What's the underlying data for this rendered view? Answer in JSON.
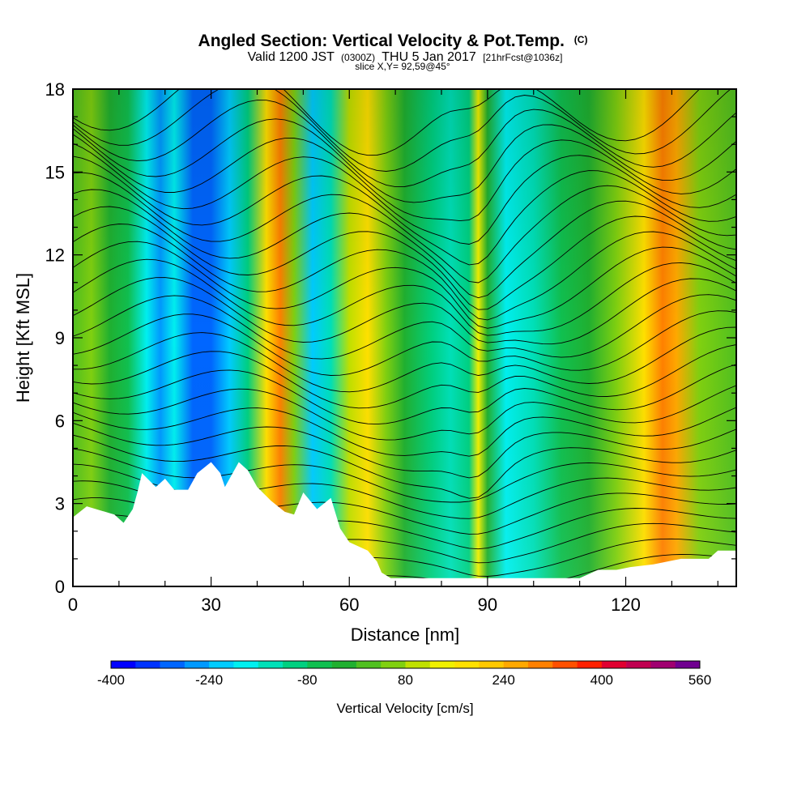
{
  "chart_data": {
    "type": "heatmap",
    "title": "Angled Section: Vertical Velocity & Pot.Temp.",
    "title_suffix": "(C)",
    "subtitle": {
      "valid": "Valid 1200 JST",
      "zulu": "(0300Z)",
      "date": "THU 5 Jan 2017",
      "forecast": "[21hrFcst@1036z]"
    },
    "slice_label": "slice X,Y= 92,59@45°",
    "xlabel": "Distance [nm]",
    "ylabel": "Height [Kft MSL]",
    "xlim": [
      0,
      144
    ],
    "ylim": [
      0,
      18
    ],
    "x_ticks": [
      "0",
      "30",
      "60",
      "90",
      "120"
    ],
    "x_tick_values": [
      0,
      30,
      60,
      90,
      120
    ],
    "y_ticks": [
      "0",
      "3",
      "6",
      "9",
      "12",
      "15",
      "18"
    ],
    "y_tick_values": [
      0,
      3,
      6,
      9,
      12,
      15,
      18
    ],
    "colorbar": {
      "title": "Vertical Velocity [cm/s]",
      "min": -400,
      "max": 560,
      "step": 40,
      "labels": [
        "-400",
        "-240",
        "-80",
        "80",
        "240",
        "400",
        "560"
      ],
      "label_values": [
        -400,
        -240,
        -80,
        80,
        240,
        400,
        560
      ],
      "colors": [
        "#0000ff",
        "#0033ff",
        "#0066ff",
        "#0099ff",
        "#00ccff",
        "#00f0f0",
        "#00e0b8",
        "#00d080",
        "#10c050",
        "#20b030",
        "#50c020",
        "#80d010",
        "#c0e000",
        "#f0f000",
        "#ffe000",
        "#ffc800",
        "#ffa800",
        "#ff8000",
        "#ff5000",
        "#ff2000",
        "#e00030",
        "#c00050",
        "#a00070",
        "#700090"
      ]
    },
    "velocity_bands": [
      {
        "x": 0,
        "v": 0
      },
      {
        "x": 4,
        "v": 40
      },
      {
        "x": 8,
        "v": -20
      },
      {
        "x": 12,
        "v": -60
      },
      {
        "x": 16,
        "v": -180
      },
      {
        "x": 19,
        "v": -280
      },
      {
        "x": 22,
        "v": -200
      },
      {
        "x": 26,
        "v": -300
      },
      {
        "x": 30,
        "v": -320
      },
      {
        "x": 34,
        "v": -240
      },
      {
        "x": 38,
        "v": -120
      },
      {
        "x": 42,
        "v": 180
      },
      {
        "x": 45,
        "v": 300
      },
      {
        "x": 48,
        "v": 60
      },
      {
        "x": 52,
        "v": -220
      },
      {
        "x": 56,
        "v": -160
      },
      {
        "x": 60,
        "v": 100
      },
      {
        "x": 64,
        "v": 160
      },
      {
        "x": 68,
        "v": 40
      },
      {
        "x": 72,
        "v": -40
      },
      {
        "x": 78,
        "v": -120
      },
      {
        "x": 82,
        "v": -160
      },
      {
        "x": 86,
        "v": -100
      },
      {
        "x": 88,
        "v": 120
      },
      {
        "x": 90,
        "v": -20
      },
      {
        "x": 94,
        "v": -180
      },
      {
        "x": 100,
        "v": -140
      },
      {
        "x": 106,
        "v": -60
      },
      {
        "x": 112,
        "v": -20
      },
      {
        "x": 118,
        "v": 40
      },
      {
        "x": 124,
        "v": 160
      },
      {
        "x": 128,
        "v": 300
      },
      {
        "x": 131,
        "v": 260
      },
      {
        "x": 136,
        "v": 60
      },
      {
        "x": 144,
        "v": 20
      }
    ],
    "terrain": [
      {
        "x": 0,
        "h": 2.5
      },
      {
        "x": 3,
        "h": 2.9
      },
      {
        "x": 9,
        "h": 2.6
      },
      {
        "x": 11,
        "h": 2.3
      },
      {
        "x": 13,
        "h": 2.8
      },
      {
        "x": 14,
        "h": 3.4
      },
      {
        "x": 15,
        "h": 4.1
      },
      {
        "x": 18,
        "h": 3.6
      },
      {
        "x": 20,
        "h": 3.9
      },
      {
        "x": 22,
        "h": 3.5
      },
      {
        "x": 25,
        "h": 3.5
      },
      {
        "x": 27,
        "h": 4.1
      },
      {
        "x": 30,
        "h": 4.5
      },
      {
        "x": 32,
        "h": 4.1
      },
      {
        "x": 33,
        "h": 3.6
      },
      {
        "x": 34,
        "h": 3.9
      },
      {
        "x": 36,
        "h": 4.5
      },
      {
        "x": 38,
        "h": 4.2
      },
      {
        "x": 40,
        "h": 3.6
      },
      {
        "x": 43,
        "h": 3.1
      },
      {
        "x": 46,
        "h": 2.7
      },
      {
        "x": 48,
        "h": 2.6
      },
      {
        "x": 50,
        "h": 3.4
      },
      {
        "x": 53,
        "h": 2.8
      },
      {
        "x": 56,
        "h": 3.2
      },
      {
        "x": 58,
        "h": 2.1
      },
      {
        "x": 60,
        "h": 1.6
      },
      {
        "x": 64,
        "h": 1.3
      },
      {
        "x": 66,
        "h": 0.9
      },
      {
        "x": 67,
        "h": 0.5
      },
      {
        "x": 69,
        "h": 0.3
      },
      {
        "x": 110,
        "h": 0.3
      },
      {
        "x": 114,
        "h": 0.6
      },
      {
        "x": 118,
        "h": 0.6
      },
      {
        "x": 121,
        "h": 0.7
      },
      {
        "x": 126,
        "h": 0.8
      },
      {
        "x": 132,
        "h": 1.0
      },
      {
        "x": 138,
        "h": 1.0
      },
      {
        "x": 140,
        "h": 1.3
      },
      {
        "x": 144,
        "h": 1.3
      }
    ]
  }
}
